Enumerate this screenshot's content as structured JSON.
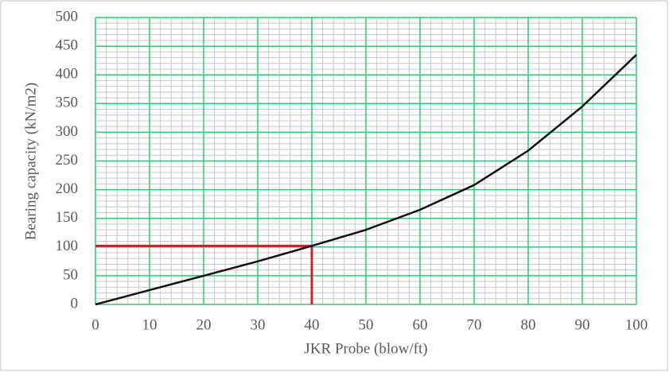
{
  "chart_data": {
    "type": "line",
    "x_label": "JKR Probe (blow/ft)",
    "y_label": "Bearing capacity (kN/m2)",
    "xlim": [
      0,
      100
    ],
    "xticks": [
      0,
      10,
      20,
      30,
      40,
      50,
      60,
      70,
      80,
      90,
      100
    ],
    "ylim": [
      0,
      500
    ],
    "yticks": [
      0,
      50,
      100,
      150,
      200,
      250,
      300,
      350,
      400,
      450,
      500
    ],
    "grid": true,
    "grid_color": "#2ecc71",
    "minor_grid": {
      "x": 2,
      "y": 10,
      "color": "#c8c8c8"
    },
    "series": [
      {
        "color": "#111111",
        "x": [
          0,
          10,
          20,
          30,
          40,
          50,
          60,
          70,
          80,
          90,
          100
        ],
        "values": [
          0,
          25,
          50,
          75,
          102,
          130,
          165,
          208,
          268,
          345,
          435
        ]
      }
    ],
    "guide": {
      "x": 40,
      "y": 102,
      "color": "#c0262d"
    }
  }
}
